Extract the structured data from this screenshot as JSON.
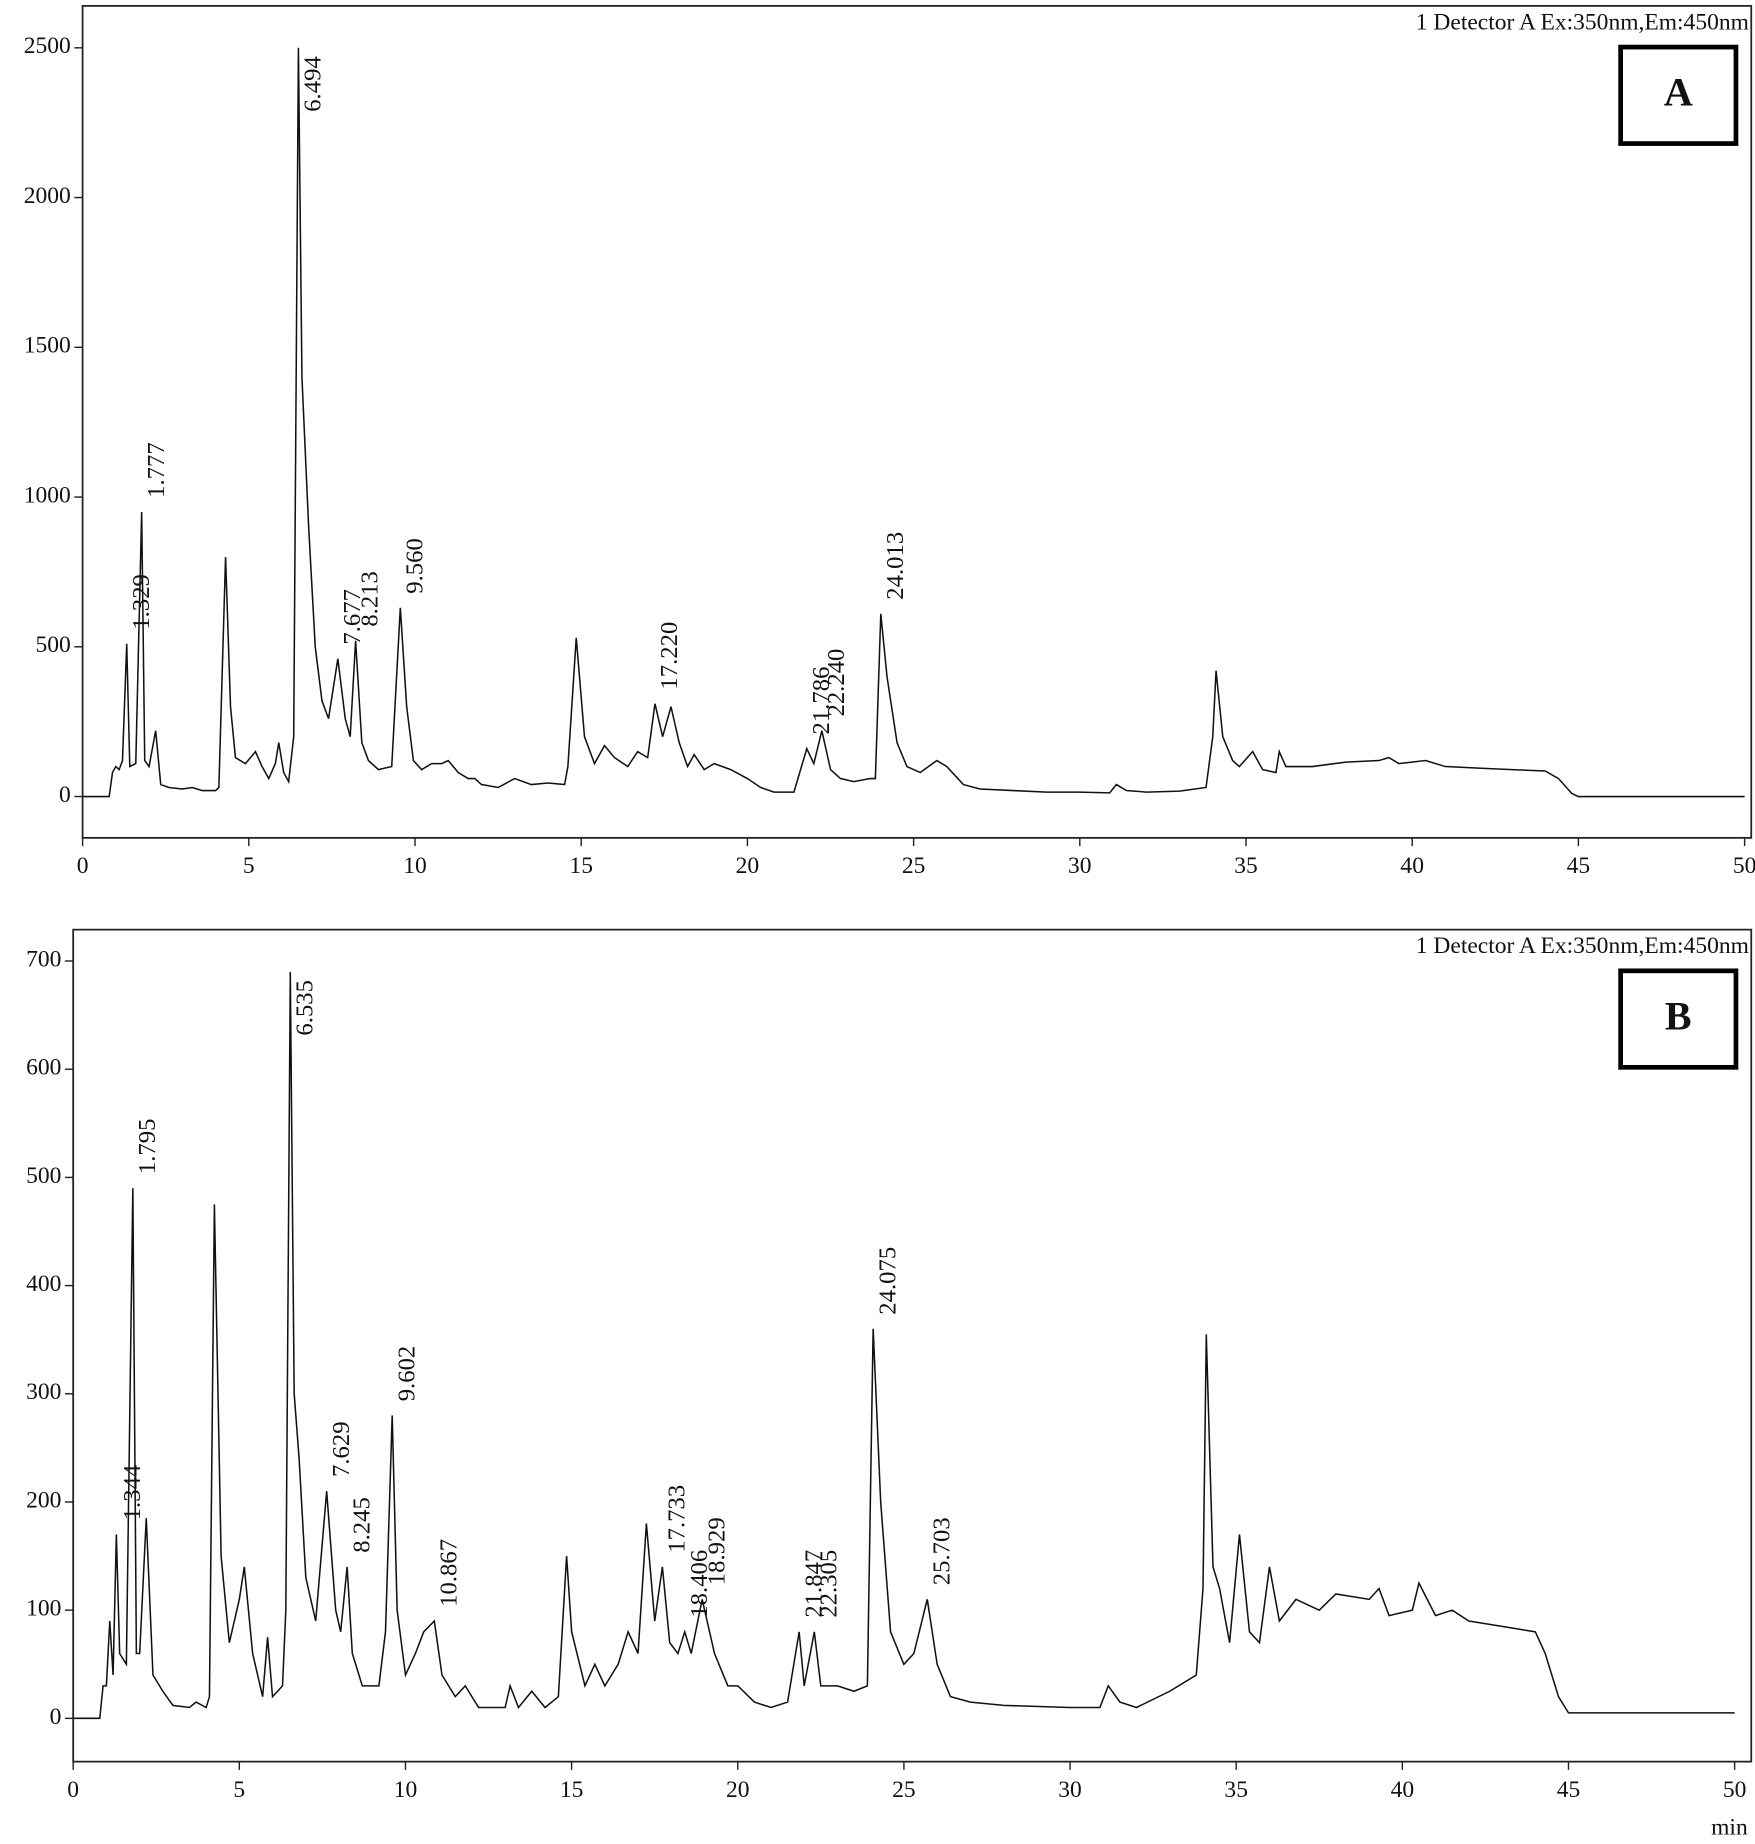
{
  "chart_data": [
    {
      "type": "line",
      "detector": "1 Detector A Ex:350nm,Em:450nm",
      "panel": "A",
      "xlim": [
        0,
        50.2
      ],
      "ylim": [
        -138,
        2640
      ],
      "xticks": [
        0,
        5,
        10,
        15,
        20,
        25,
        30,
        35,
        40,
        45,
        50
      ],
      "yticks": [
        0,
        500,
        1000,
        1500,
        2000,
        2500
      ],
      "color": "#111111",
      "x": [
        0,
        0.8,
        0.9,
        1.0,
        1.1,
        1.2,
        1.329,
        1.42,
        1.6,
        1.777,
        1.87,
        2.0,
        2.2,
        2.35,
        2.6,
        3.0,
        3.3,
        3.6,
        4.0,
        4.1,
        4.3,
        4.45,
        4.6,
        4.9,
        5.2,
        5.4,
        5.6,
        5.8,
        5.9,
        6.05,
        6.2,
        6.35,
        6.494,
        6.6,
        6.8,
        7.0,
        7.2,
        7.4,
        7.677,
        7.9,
        8.05,
        8.213,
        8.4,
        8.6,
        8.9,
        9.3,
        9.56,
        9.75,
        9.95,
        10.2,
        10.5,
        10.8,
        11.0,
        11.3,
        11.6,
        11.8,
        12.0,
        12.5,
        13.0,
        13.5,
        14.0,
        14.5,
        14.6,
        14.85,
        15.1,
        15.4,
        15.7,
        16.0,
        16.4,
        16.7,
        17.0,
        17.22,
        17.45,
        17.7,
        17.95,
        18.2,
        18.4,
        18.7,
        19.0,
        19.5,
        20.0,
        20.4,
        20.8,
        21.4,
        21.786,
        22.0,
        22.24,
        22.5,
        22.8,
        23.2,
        23.7,
        23.85,
        24.013,
        24.2,
        24.5,
        24.8,
        25.2,
        25.7,
        26.0,
        26.5,
        27,
        28,
        29,
        30,
        30.9,
        31.1,
        31.4,
        32,
        33,
        33.8,
        34.0,
        34.1,
        34.3,
        34.6,
        34.8,
        35.2,
        35.5,
        35.9,
        36.0,
        36.2,
        37,
        38,
        39,
        39.3,
        39.6,
        40.4,
        41,
        42,
        43,
        44,
        44.4,
        44.8,
        45,
        50
      ],
      "values": [
        0,
        0,
        80,
        100,
        90,
        120,
        510,
        100,
        110,
        950,
        120,
        100,
        220,
        40,
        30,
        25,
        30,
        20,
        20,
        30,
        800,
        300,
        130,
        110,
        150,
        100,
        60,
        110,
        180,
        80,
        50,
        200,
        2500,
        1400,
        900,
        500,
        320,
        260,
        460,
        260,
        200,
        520,
        180,
        120,
        90,
        100,
        630,
        300,
        120,
        90,
        110,
        110,
        120,
        80,
        60,
        60,
        40,
        30,
        60,
        40,
        45,
        40,
        100,
        530,
        200,
        110,
        170,
        130,
        100,
        150,
        130,
        310,
        200,
        300,
        180,
        100,
        140,
        90,
        110,
        90,
        60,
        30,
        15,
        15,
        160,
        110,
        220,
        90,
        60,
        50,
        60,
        60,
        610,
        400,
        180,
        100,
        80,
        120,
        100,
        40,
        25,
        20,
        15,
        15,
        12,
        40,
        20,
        15,
        18,
        30,
        200,
        420,
        200,
        120,
        100,
        150,
        90,
        80,
        150,
        100,
        100,
        115,
        120,
        130,
        110,
        120,
        100,
        95,
        90,
        85,
        60,
        10,
        0,
        0
      ],
      "peak_labels": [
        1.329,
        1.777,
        6.494,
        7.677,
        8.213,
        {
          "value": 9.56,
          "label": "9.560"
        },
        {
          "value": 17.22,
          "label": "17.220"
        },
        21.786,
        {
          "value": 22.24,
          "label": "22.240"
        },
        24.013
      ]
    },
    {
      "type": "line",
      "detector": "1 Detector A Ex:350nm,Em:450nm",
      "panel": "B",
      "x_label": "min",
      "xlim": [
        0,
        50.5
      ],
      "ylim": [
        -40,
        729
      ],
      "xticks": [
        0,
        5,
        10,
        15,
        20,
        25,
        30,
        35,
        40,
        45,
        50
      ],
      "yticks": [
        0,
        100,
        200,
        300,
        400,
        500,
        600,
        700
      ],
      "color": "#111111",
      "x": [
        0,
        0.8,
        0.9,
        1.0,
        1.1,
        1.2,
        1.3,
        1.4,
        1.6,
        1.795,
        1.9,
        2.0,
        2.2,
        2.4,
        2.7,
        3.0,
        3.5,
        3.7,
        4.0,
        4.1,
        4.25,
        4.45,
        4.7,
        5.0,
        5.15,
        5.4,
        5.7,
        5.85,
        6.0,
        6.3,
        6.4,
        6.535,
        6.65,
        6.8,
        7.0,
        7.3,
        7.629,
        7.9,
        8.05,
        8.245,
        8.4,
        8.7,
        9.2,
        9.4,
        9.602,
        9.75,
        10.0,
        10.3,
        10.55,
        10.867,
        11.1,
        11.5,
        11.8,
        12.2,
        13.0,
        13.15,
        13.4,
        13.8,
        14.2,
        14.6,
        14.85,
        15.0,
        15.4,
        15.7,
        16.0,
        16.4,
        16.7,
        17.0,
        17.25,
        17.5,
        17.733,
        17.95,
        18.2,
        18.406,
        18.6,
        18.929,
        19.3,
        19.7,
        20.0,
        20.5,
        21.0,
        21.5,
        21.847,
        22.0,
        22.305,
        22.5,
        23.0,
        23.5,
        23.9,
        24.075,
        24.3,
        24.6,
        25.0,
        25.3,
        25.703,
        26.0,
        26.4,
        27,
        28,
        30,
        30.9,
        31.15,
        31.5,
        32,
        33,
        33.8,
        34.0,
        34.1,
        34.3,
        34.5,
        34.8,
        35.1,
        35.4,
        35.7,
        36.0,
        36.3,
        36.8,
        37.5,
        38,
        39,
        39.3,
        39.6,
        40.3,
        40.5,
        41,
        41.5,
        42,
        43,
        44,
        44.3,
        44.7,
        45,
        50
      ],
      "values": [
        0,
        0,
        30,
        30,
        90,
        40,
        170,
        60,
        50,
        490,
        60,
        60,
        185,
        40,
        25,
        12,
        10,
        15,
        10,
        20,
        475,
        150,
        70,
        110,
        140,
        60,
        20,
        75,
        20,
        30,
        100,
        690,
        300,
        240,
        130,
        90,
        210,
        100,
        80,
        140,
        60,
        30,
        30,
        80,
        280,
        100,
        40,
        60,
        80,
        90,
        40,
        20,
        30,
        10,
        10,
        30,
        10,
        25,
        10,
        20,
        150,
        80,
        30,
        50,
        30,
        50,
        80,
        60,
        180,
        90,
        140,
        70,
        60,
        80,
        60,
        110,
        60,
        30,
        30,
        15,
        10,
        15,
        80,
        30,
        80,
        30,
        30,
        25,
        30,
        360,
        200,
        80,
        50,
        60,
        110,
        50,
        20,
        15,
        12,
        10,
        10,
        30,
        15,
        10,
        25,
        40,
        120,
        355,
        140,
        120,
        70,
        170,
        80,
        70,
        140,
        90,
        110,
        100,
        115,
        110,
        120,
        95,
        100,
        125,
        95,
        100,
        90,
        85,
        80,
        60,
        20,
        5,
        5
      ],
      "peak_labels": [
        1.344,
        1.795,
        6.535,
        7.629,
        8.245,
        9.602,
        10.867,
        17.733,
        18.406,
        18.929,
        21.847,
        22.305,
        24.075,
        25.703
      ]
    }
  ]
}
